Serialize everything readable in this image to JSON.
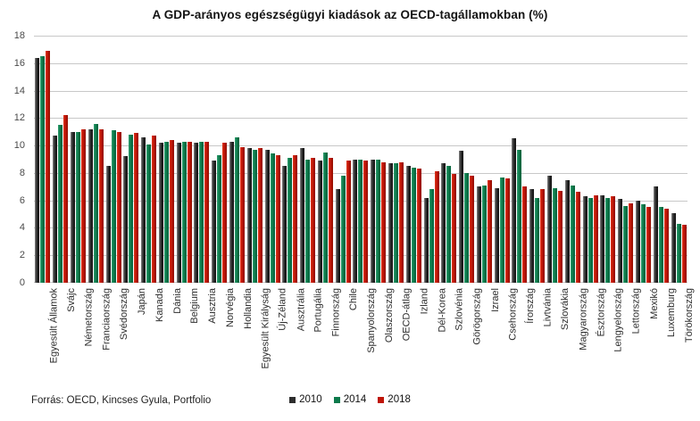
{
  "title": "A GDP-arányos egészségügyi kiadások az OECD-tagállamokban (%)",
  "source": "Forrás: OECD, Kincses Gyula, Portfolio",
  "series_colors": [
    "#2d2d2d",
    "#0d7a4c",
    "#bf1507"
  ],
  "chart_data": {
    "type": "bar",
    "title": "A GDP-arányos egészségügyi kiadások az OECD-tagállamokban (%)",
    "xlabel": "",
    "ylabel": "",
    "ylim": [
      0,
      18
    ],
    "yticks": [
      0,
      2,
      4,
      6,
      8,
      10,
      12,
      14,
      16,
      18
    ],
    "grid": true,
    "legend_position": "bottom",
    "categories": [
      "Egyesült Államok",
      "Svájc",
      "Németország",
      "Franciaország",
      "Svédország",
      "Japán",
      "Kanada",
      "Dánia",
      "Belgium",
      "Ausztria",
      "Norvégia",
      "Hollandia",
      "Egyesült Királyság",
      "Új-Zéland",
      "Ausztrália",
      "Portugália",
      "Finnország",
      "Chile",
      "Spanyolország",
      "Olaszország",
      "OECD-átlag",
      "Izland",
      "Dél-Korea",
      "Szlovénia",
      "Görögország",
      "Izrael",
      "Csehország",
      "Írország",
      "Livtvánia",
      "Szlovákia",
      "Magyarország",
      "Észtország",
      "Lengyelország",
      "Lettország",
      "Mexikó",
      "Luxemburg",
      "Törökország"
    ],
    "series": [
      {
        "name": "2010",
        "values": [
          16.4,
          10.7,
          11.0,
          11.2,
          8.5,
          9.2,
          10.6,
          10.2,
          10.2,
          10.2,
          8.9,
          10.3,
          9.8,
          9.7,
          8.5,
          9.8,
          8.9,
          6.8,
          9.0,
          9.0,
          8.7,
          8.5,
          6.2,
          8.7,
          9.6,
          7.0,
          6.9,
          10.5,
          6.8,
          7.8,
          7.5,
          6.3,
          6.4,
          6.1,
          6.0,
          7.0,
          5.1
        ]
      },
      {
        "name": "2014",
        "values": [
          16.5,
          11.5,
          11.0,
          11.6,
          11.1,
          10.8,
          10.1,
          10.3,
          10.3,
          10.3,
          9.3,
          10.6,
          9.7,
          9.4,
          9.1,
          9.0,
          9.5,
          7.8,
          9.0,
          9.0,
          8.7,
          8.4,
          6.8,
          8.5,
          8.0,
          7.1,
          7.7,
          9.7,
          6.2,
          6.9,
          7.1,
          6.2,
          6.2,
          5.6,
          5.7,
          5.5,
          4.3
        ]
      },
      {
        "name": "2018",
        "values": [
          16.9,
          12.2,
          11.2,
          11.2,
          11.0,
          10.9,
          10.7,
          10.4,
          10.3,
          10.3,
          10.2,
          9.9,
          9.8,
          9.3,
          9.3,
          9.1,
          9.1,
          8.9,
          8.9,
          8.8,
          8.8,
          8.3,
          8.1,
          7.9,
          7.8,
          7.5,
          7.6,
          7.0,
          6.8,
          6.7,
          6.6,
          6.4,
          6.3,
          5.8,
          5.5,
          5.4,
          4.2
        ]
      }
    ]
  }
}
